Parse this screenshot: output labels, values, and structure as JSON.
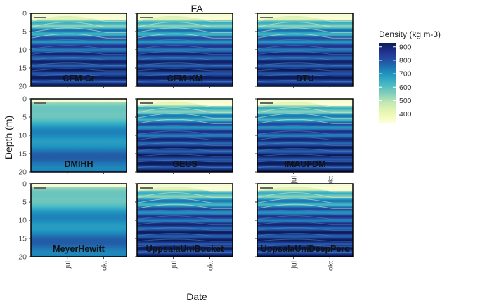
{
  "chart_data": {
    "type": "heatmap",
    "title": "FA",
    "xlabel": "Date",
    "ylabel": "Depth (m)",
    "y_range": [
      0,
      20
    ],
    "y_ticks": [
      "0",
      "5",
      "10",
      "15",
      "20"
    ],
    "x_ticks": [
      "jul",
      "okt"
    ],
    "legend": {
      "title": "Density (kg m-3)",
      "ticks": [
        "900",
        "800",
        "700",
        "600",
        "500",
        "400"
      ],
      "tick_values": [
        900,
        800,
        700,
        600,
        500,
        400
      ],
      "range": [
        330,
        930
      ],
      "placement": "right"
    },
    "colormap": [
      "#ffffd9",
      "#edf8b1",
      "#c7e9b4",
      "#7fcdbb",
      "#41b6c4",
      "#1d91c0",
      "#225ea8",
      "#253494",
      "#081d58"
    ],
    "panels": [
      {
        "label": "CFM-Cr",
        "style": "layered"
      },
      {
        "label": "CFM-KM",
        "style": "layered"
      },
      {
        "label": "DTU",
        "style": "layered"
      },
      {
        "label": "DMIHH",
        "style": "smooth"
      },
      {
        "label": "GEUS",
        "style": "layered"
      },
      {
        "label": "IMAUFDM",
        "style": "layered"
      },
      {
        "label": "MeyerHewitt",
        "style": "smooth"
      },
      {
        "label": "UppsalaUniBucket",
        "style": "layered"
      },
      {
        "label": "UppsalaUniDeepPerc",
        "style": "layered"
      }
    ]
  }
}
